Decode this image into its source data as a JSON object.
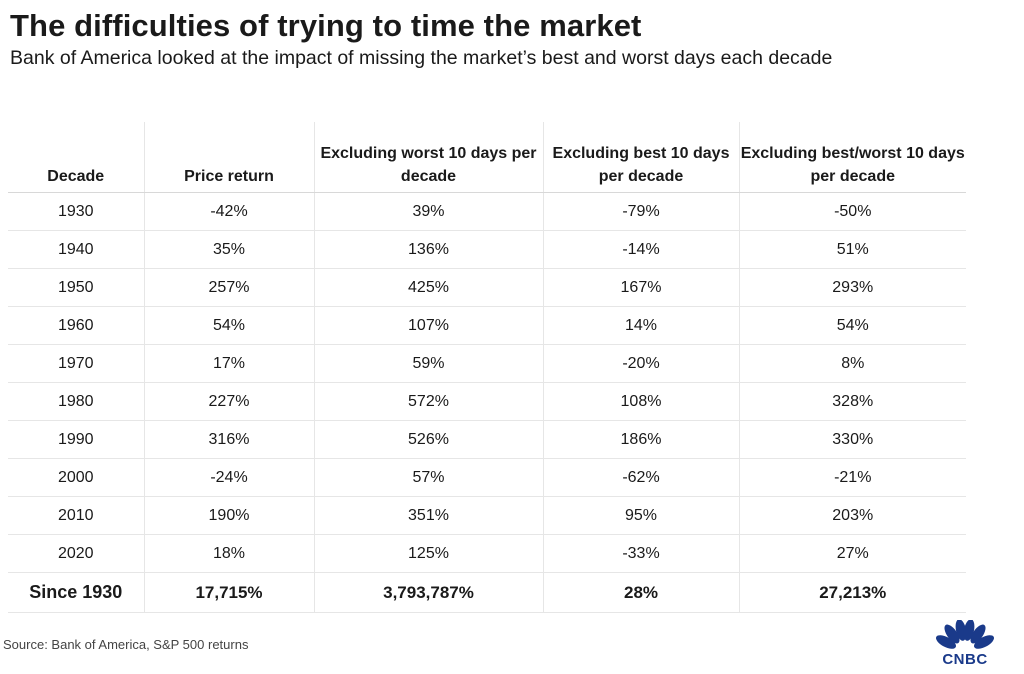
{
  "title": "The difficulties of trying to time the market",
  "subtitle": "Bank of America looked at the impact of missing the market’s best and worst days each decade",
  "source": "Source: Bank of America, S&P 500 returns",
  "brand": {
    "name": "CNBC",
    "color": "#1a3a8a"
  },
  "chart_data": {
    "type": "table",
    "columns": [
      "Decade",
      "Price return",
      "Excluding worst 10 days per decade",
      "Excluding best 10 days per decade",
      "Excluding best/worst 10 days per decade"
    ],
    "rows": [
      [
        "1930",
        "-42%",
        "39%",
        "-79%",
        "-50%"
      ],
      [
        "1940",
        "35%",
        "136%",
        "-14%",
        "51%"
      ],
      [
        "1950",
        "257%",
        "425%",
        "167%",
        "293%"
      ],
      [
        "1960",
        "54%",
        "107%",
        "14%",
        "54%"
      ],
      [
        "1970",
        "17%",
        "59%",
        "-20%",
        "8%"
      ],
      [
        "1980",
        "227%",
        "572%",
        "108%",
        "328%"
      ],
      [
        "1990",
        "316%",
        "526%",
        "186%",
        "330%"
      ],
      [
        "2000",
        "-24%",
        "57%",
        "-62%",
        "-21%"
      ],
      [
        "2010",
        "190%",
        "351%",
        "95%",
        "203%"
      ],
      [
        "2020",
        "18%",
        "125%",
        "-33%",
        "27%"
      ]
    ],
    "total_row": [
      "Since 1930",
      "17,715%",
      "3,793,787%",
      "28%",
      "27,213%"
    ]
  }
}
